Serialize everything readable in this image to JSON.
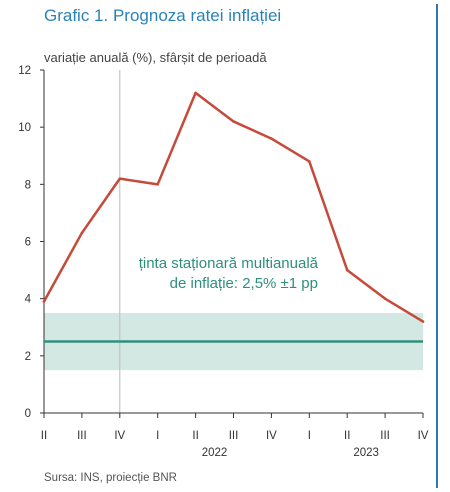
{
  "header": {
    "title": "Grafic 1. Prognoza ratei inflației",
    "subtitle": "variație anuală (%), sfârșit de perioadă"
  },
  "footer": {
    "source": "Sursa: INS, proiecție BNR"
  },
  "colors": {
    "title": "#2a82b9",
    "forecast_line": "#c64a3a",
    "target_line": "#2e8f7d",
    "target_band": "#d3e8e3",
    "axis": "#333333",
    "grid": "#bdbdbd",
    "right_rule": "#2d79b6"
  },
  "chart_data": {
    "type": "line",
    "title": "Grafic 1. Prognoza ratei inflației",
    "ylabel": "variație anuală (%), sfârșit de perioadă",
    "ylim": [
      0,
      12
    ],
    "yticks": [
      0,
      2,
      4,
      6,
      8,
      10,
      12
    ],
    "categories": [
      "II",
      "III",
      "IV",
      "I",
      "II",
      "III",
      "IV",
      "I",
      "II",
      "III",
      "IV"
    ],
    "years": [
      {
        "label": "2022",
        "from_index": 3,
        "to_index": 6
      },
      {
        "label": "2023",
        "from_index": 7,
        "to_index": 10
      }
    ],
    "vertical_gridline_after_index": 2,
    "series": [
      {
        "values": [
          3.9,
          6.3,
          8.2,
          8.0,
          11.2,
          10.2,
          9.6,
          8.8,
          5.0,
          4.0,
          3.2
        ]
      }
    ],
    "target": {
      "central": 2.5,
      "band": [
        1.5,
        3.5
      ],
      "label_line1": "ținta staționară multianuală",
      "label_line2": "de inflație: 2,5% ±1 pp"
    }
  }
}
